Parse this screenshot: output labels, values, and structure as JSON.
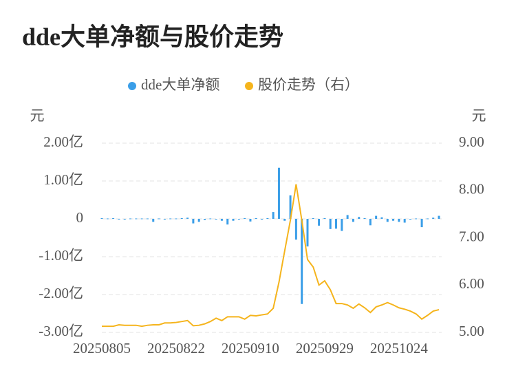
{
  "chart_data": {
    "type": "bar-line",
    "title": "dde大单净额与股价走势",
    "ylabel": "元",
    "y2label": "元",
    "categories": [
      "20250805",
      null,
      null,
      null,
      null,
      null,
      null,
      null,
      null,
      null,
      null,
      null,
      null,
      "20250822",
      null,
      null,
      null,
      null,
      null,
      null,
      null,
      null,
      null,
      null,
      null,
      null,
      "20250910",
      null,
      null,
      null,
      null,
      null,
      null,
      null,
      null,
      null,
      null,
      null,
      null,
      "20250929",
      null,
      null,
      null,
      null,
      null,
      null,
      null,
      null,
      null,
      null,
      null,
      null,
      "20251024",
      null,
      null,
      null,
      null,
      null,
      null,
      null
    ],
    "series": [
      {
        "name": "dde大单净额",
        "type": "bar",
        "color": "#3a9ee8",
        "axis": "y",
        "values": [
          0.02,
          0.01,
          0.02,
          0,
          -0.02,
          0.01,
          0.01,
          0.01,
          0.01,
          -0.08,
          0.01,
          -0.02,
          0.01,
          0.01,
          0.02,
          0.03,
          -0.12,
          -0.08,
          -0.03,
          0.01,
          -0.01,
          -0.05,
          -0.15,
          -0.05,
          -0.02,
          0.02,
          -0.07,
          0.02,
          -0.02,
          0.02,
          0.18,
          1.35,
          -0.05,
          0.62,
          -0.55,
          -2.25,
          -0.73,
          0.02,
          -0.18,
          0.02,
          -0.27,
          -0.26,
          -0.32,
          0.1,
          -0.08,
          0.05,
          0.02,
          -0.17,
          0.08,
          0.04,
          -0.08,
          -0.05,
          -0.08,
          -0.1,
          -0.02,
          0.01,
          -0.22,
          0.01,
          0.03,
          0.08
        ]
      },
      {
        "name": "股价走势（右）",
        "type": "line",
        "color": "#f5b41c",
        "axis": "y2",
        "values": [
          5.13,
          5.13,
          5.13,
          5.16,
          5.15,
          5.15,
          5.15,
          5.13,
          5.15,
          5.16,
          5.16,
          5.2,
          5.2,
          5.21,
          5.23,
          5.25,
          5.14,
          5.15,
          5.18,
          5.23,
          5.3,
          5.25,
          5.33,
          5.33,
          5.33,
          5.28,
          5.36,
          5.35,
          5.37,
          5.39,
          5.51,
          6.06,
          6.72,
          7.37,
          8.13,
          7.37,
          6.54,
          6.38,
          6.0,
          6.09,
          5.9,
          5.61,
          5.61,
          5.58,
          5.51,
          5.6,
          5.52,
          5.42,
          5.54,
          5.58,
          5.63,
          5.58,
          5.52,
          5.49,
          5.45,
          5.39,
          5.28,
          5.36,
          5.45,
          5.48
        ]
      }
    ],
    "ylim": [
      -3,
      2
    ],
    "yticks": [
      {
        "value": 2,
        "label": "2.00亿"
      },
      {
        "value": 1,
        "label": "1.00亿"
      },
      0,
      {
        "value": -1,
        "label": "-1.00亿"
      },
      {
        "value": -2,
        "label": "-2.00亿"
      },
      {
        "value": -3,
        "label": "-3.00亿"
      }
    ],
    "y2lim": [
      5,
      9
    ],
    "y2ticks": [
      {
        "value": 9,
        "label": "9.00"
      },
      {
        "value": 8,
        "label": "8.00"
      },
      {
        "value": 7,
        "label": "7.00"
      },
      {
        "value": 6,
        "label": "6.00"
      },
      {
        "value": 5,
        "label": "5.00"
      }
    ],
    "grid": true,
    "legend": "top"
  }
}
